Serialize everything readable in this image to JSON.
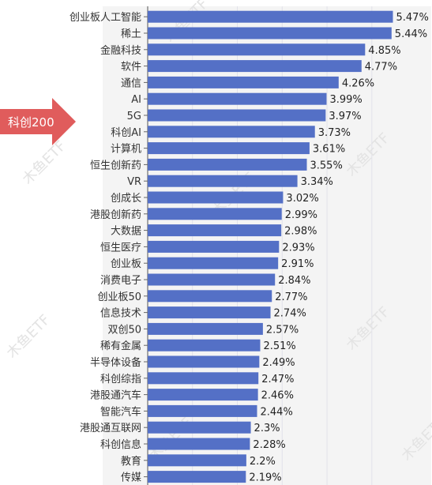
{
  "chart_data": {
    "type": "bar",
    "orientation": "horizontal",
    "categories": [
      "创业板人工智能",
      "稀土",
      "金融科技",
      "软件",
      "通信",
      "AI",
      "5G",
      "科创AI",
      "计算机",
      "恒生创新药",
      "VR",
      "创成长",
      "港股创新药",
      "大数据",
      "恒生医疗",
      "创业板",
      "消费电子",
      "创业板50",
      "信息技术",
      "双创50",
      "稀有金属",
      "半导体设备",
      "科创综指",
      "港股通汽车",
      "智能汽车",
      "港股通互联网",
      "科创信息",
      "教育",
      "传媒"
    ],
    "values": [
      5.47,
      5.44,
      4.85,
      4.77,
      4.26,
      3.99,
      3.97,
      3.73,
      3.61,
      3.55,
      3.34,
      3.02,
      2.99,
      2.98,
      2.93,
      2.91,
      2.84,
      2.77,
      2.74,
      2.57,
      2.51,
      2.49,
      2.47,
      2.46,
      2.44,
      2.3,
      2.28,
      2.2,
      2.19
    ],
    "value_labels": [
      "5.47%",
      "5.44%",
      "4.85%",
      "4.77%",
      "4.26%",
      "3.99%",
      "3.97%",
      "3.73%",
      "3.61%",
      "3.55%",
      "3.34%",
      "3.02%",
      "2.99%",
      "2.98%",
      "2.93%",
      "2.91%",
      "2.84%",
      "2.77%",
      "2.74%",
      "2.57%",
      "2.51%",
      "2.49%",
      "2.47%",
      "2.46%",
      "2.44%",
      "2.3%",
      "2.28%",
      "2.2%",
      "2.19%"
    ],
    "xlim": [
      0,
      5.8
    ],
    "grid": true,
    "legend": "none",
    "bar_color": "#5470c6",
    "background_color": "#f4f4f4",
    "annotation": {
      "text": "科创200",
      "color": "#e05c5c",
      "points_to": "5G"
    },
    "watermark": "木鱼ETF"
  }
}
